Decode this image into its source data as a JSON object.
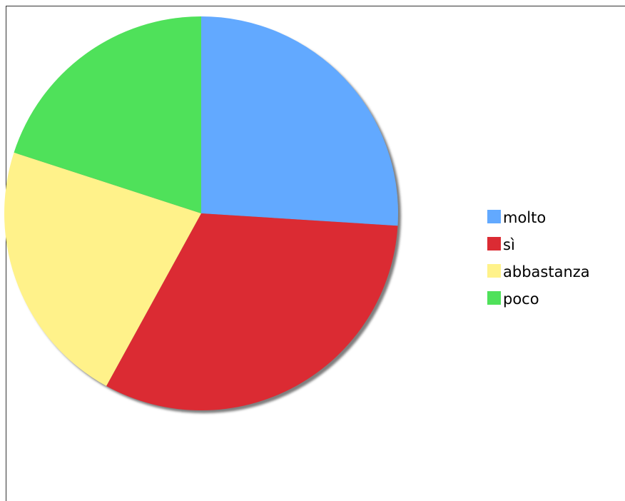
{
  "chart_data": {
    "type": "pie",
    "title": "",
    "start_angle_deg": 90,
    "direction": "clockwise",
    "legend_position": "right",
    "slices": [
      {
        "label": "molto",
        "value": 26,
        "color": "#62a9ff"
      },
      {
        "label": "sì",
        "value": 32,
        "color": "#db2b33"
      },
      {
        "label": "abbastanza",
        "value": 22,
        "color": "#fff28a"
      },
      {
        "label": "poco",
        "value": 20,
        "color": "#4fe15a"
      }
    ]
  }
}
